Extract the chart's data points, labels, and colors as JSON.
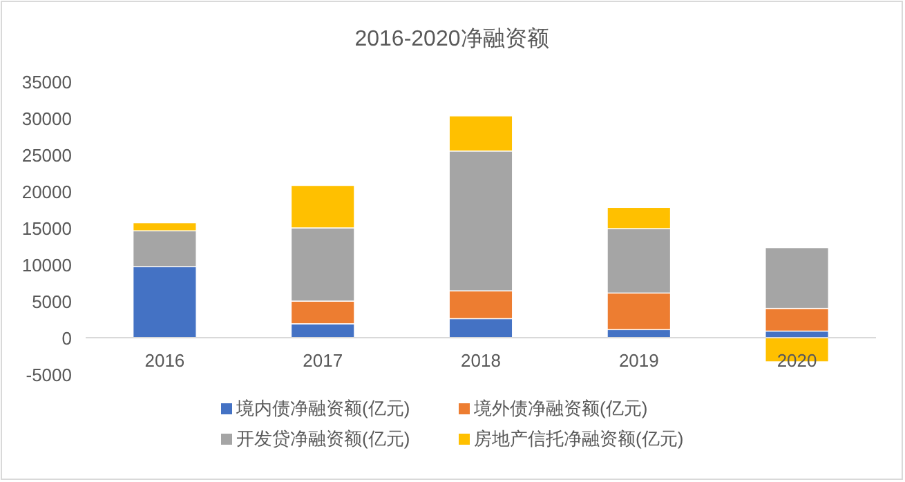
{
  "chart_data": {
    "type": "bar",
    "stacked": true,
    "title": "2016-2020净融资额",
    "categories": [
      "2016",
      "2017",
      "2018",
      "2019",
      "2020"
    ],
    "series": [
      {
        "name": "境内债净融资额(亿元)",
        "color": "#4472c4",
        "values": [
          9700,
          1900,
          2600,
          1100,
          900
        ]
      },
      {
        "name": "境外债净融资额(亿元)",
        "color": "#ed7d31",
        "values": [
          null,
          3100,
          3800,
          5000,
          3100
        ]
      },
      {
        "name": "开发贷净融资额(亿元)",
        "color": "#a5a5a5",
        "values": [
          4900,
          10000,
          19100,
          8800,
          8300
        ]
      },
      {
        "name": "房地产信托净融资额(亿元)",
        "color": "#ffc000",
        "values": [
          1100,
          5800,
          4800,
          2900,
          -3300
        ]
      }
    ],
    "ylim": [
      -5000,
      35000
    ],
    "yticks": [
      -5000,
      0,
      5000,
      10000,
      15000,
      20000,
      25000,
      30000,
      35000
    ],
    "grid": false,
    "legend": "bottom"
  }
}
